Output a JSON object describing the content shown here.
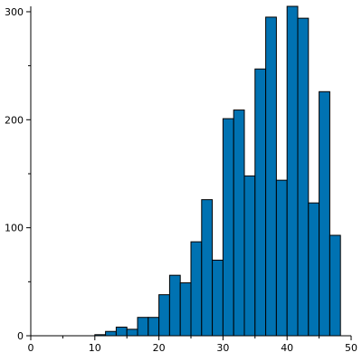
{
  "chart_data": {
    "type": "bar",
    "title": "",
    "xlabel": "",
    "ylabel": "",
    "xlim": [
      0,
      50
    ],
    "ylim": [
      0,
      305
    ],
    "x_ticks": [
      0,
      10,
      20,
      30,
      40,
      50
    ],
    "y_ticks": [
      0,
      100,
      200,
      300
    ],
    "grid": false,
    "bar_color": "#0072b2",
    "bin_width": 1.667,
    "bins": [
      {
        "x0": 10.0,
        "x1": 11.667,
        "value": 1
      },
      {
        "x0": 11.667,
        "x1": 13.333,
        "value": 4
      },
      {
        "x0": 13.333,
        "x1": 15.0,
        "value": 8
      },
      {
        "x0": 15.0,
        "x1": 16.667,
        "value": 6
      },
      {
        "x0": 16.667,
        "x1": 18.333,
        "value": 17
      },
      {
        "x0": 18.333,
        "x1": 20.0,
        "value": 17
      },
      {
        "x0": 20.0,
        "x1": 21.667,
        "value": 38
      },
      {
        "x0": 21.667,
        "x1": 23.333,
        "value": 56
      },
      {
        "x0": 23.333,
        "x1": 25.0,
        "value": 49
      },
      {
        "x0": 25.0,
        "x1": 26.667,
        "value": 87
      },
      {
        "x0": 26.667,
        "x1": 28.333,
        "value": 126
      },
      {
        "x0": 28.333,
        "x1": 30.0,
        "value": 70
      },
      {
        "x0": 30.0,
        "x1": 31.667,
        "value": 201
      },
      {
        "x0": 31.667,
        "x1": 33.333,
        "value": 209
      },
      {
        "x0": 33.333,
        "x1": 35.0,
        "value": 148
      },
      {
        "x0": 35.0,
        "x1": 36.667,
        "value": 247
      },
      {
        "x0": 36.667,
        "x1": 38.333,
        "value": 295
      },
      {
        "x0": 38.333,
        "x1": 40.0,
        "value": 144
      },
      {
        "x0": 40.0,
        "x1": 41.667,
        "value": 305
      },
      {
        "x0": 41.667,
        "x1": 43.333,
        "value": 294
      },
      {
        "x0": 43.333,
        "x1": 45.0,
        "value": 123
      },
      {
        "x0": 45.0,
        "x1": 46.667,
        "value": 226
      },
      {
        "x0": 46.667,
        "x1": 48.333,
        "value": 93
      }
    ]
  }
}
